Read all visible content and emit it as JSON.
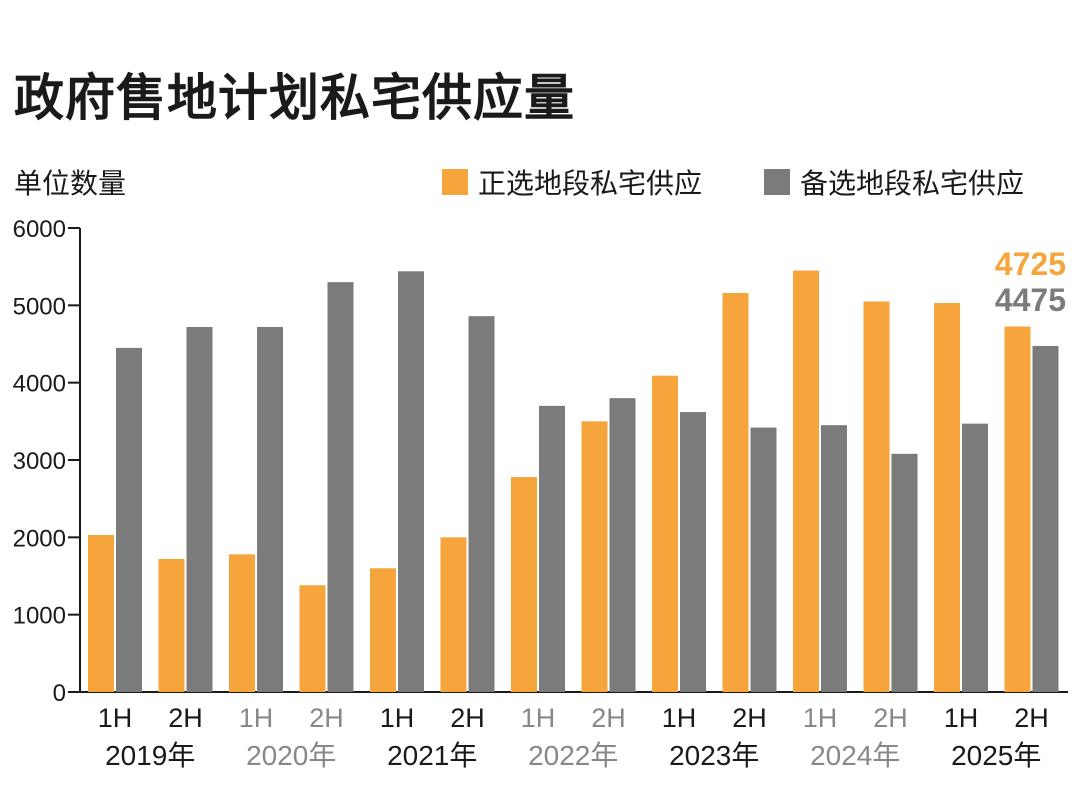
{
  "title": "政府售地计划私宅供应量",
  "chart_data": {
    "type": "bar",
    "ylabel": "单位数量",
    "ylim": [
      0,
      6000
    ],
    "yticks": [
      0,
      1000,
      2000,
      3000,
      4000,
      5000,
      6000
    ],
    "categories": [
      "1H",
      "2H",
      "1H",
      "2H",
      "1H",
      "2H",
      "1H",
      "2H",
      "1H",
      "2H",
      "1H",
      "2H",
      "1H",
      "2H"
    ],
    "years": [
      {
        "label": "2019年",
        "muted": false
      },
      {
        "label": "2020年",
        "muted": true
      },
      {
        "label": "2021年",
        "muted": false
      },
      {
        "label": "2022年",
        "muted": true
      },
      {
        "label": "2023年",
        "muted": false
      },
      {
        "label": "2024年",
        "muted": true
      },
      {
        "label": "2025年",
        "muted": false
      }
    ],
    "series": [
      {
        "name": "正选地段私宅供应",
        "color": "#f5a53b",
        "values": [
          2030,
          1720,
          1780,
          1380,
          1600,
          2000,
          2780,
          3500,
          4090,
          5160,
          5450,
          5050,
          5030,
          4725
        ]
      },
      {
        "name": "备选地段私宅供应",
        "color": "#7b7b7b",
        "values": [
          4450,
          4720,
          4720,
          5300,
          5440,
          4860,
          3700,
          3800,
          3620,
          3420,
          3450,
          3080,
          3470,
          4475
        ]
      }
    ],
    "annotations": [
      "4725",
      "4475"
    ],
    "colors": {
      "dark_text": "#1a1a1a",
      "muted_text": "#888888"
    }
  }
}
